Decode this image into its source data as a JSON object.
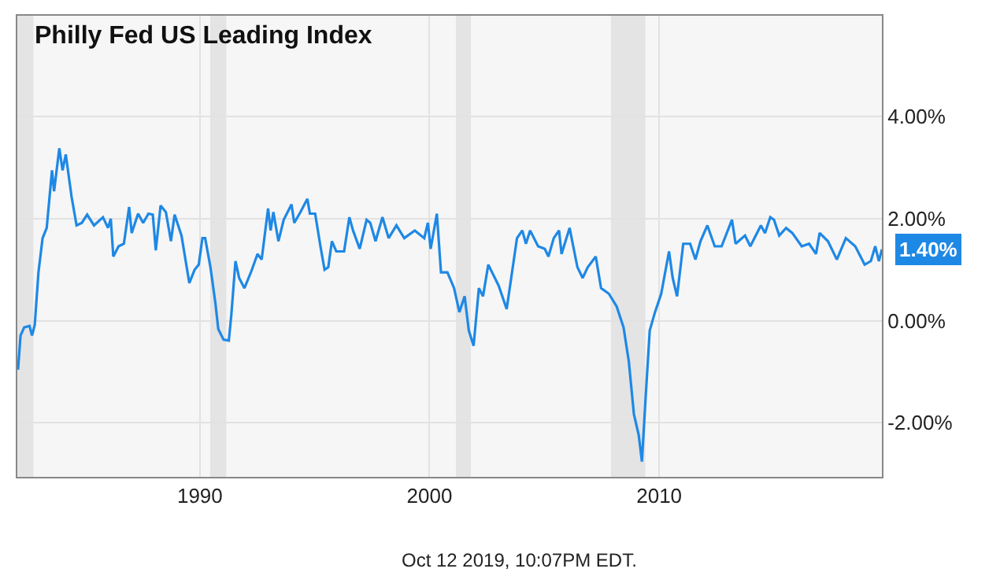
{
  "chart_data": {
    "type": "line",
    "title": "Philly Fed US Leading Index",
    "x": [
      1982.08,
      1982.19,
      1982.35,
      1982.58,
      1982.69,
      1982.81,
      1982.97,
      1983.15,
      1983.33,
      1983.56,
      1983.65,
      1983.88,
      1984.02,
      1984.16,
      1984.41,
      1984.63,
      1984.86,
      1985.09,
      1985.39,
      1985.78,
      1986.0,
      1986.12,
      1986.23,
      1986.46,
      1986.69,
      1986.92,
      1987.03,
      1987.31,
      1987.53,
      1987.76,
      1987.95,
      1988.08,
      1988.29,
      1988.52,
      1988.74,
      1988.9,
      1989.2,
      1989.54,
      1989.77,
      1989.95,
      1990.11,
      1990.23,
      1990.46,
      1990.68,
      1990.8,
      1991.03,
      1991.26,
      1991.37,
      1991.55,
      1991.71,
      1991.94,
      1992.24,
      1992.51,
      1992.69,
      1992.97,
      1993.08,
      1993.2,
      1993.42,
      1993.65,
      1993.99,
      1994.11,
      1994.38,
      1994.68,
      1994.79,
      1995.02,
      1995.25,
      1995.43,
      1995.59,
      1995.75,
      1995.94,
      1996.28,
      1996.51,
      1996.67,
      1996.96,
      1997.26,
      1997.42,
      1997.65,
      1997.95,
      1998.22,
      1998.56,
      1998.9,
      1999.36,
      1999.77,
      1999.93,
      2000.05,
      2000.32,
      2000.5,
      2000.78,
      2001.07,
      2001.3,
      2001.53,
      2001.71,
      2001.92,
      2002.15,
      2002.33,
      2002.56,
      2003.01,
      2003.36,
      2003.81,
      2004.04,
      2004.2,
      2004.38,
      2004.73,
      2005.02,
      2005.18,
      2005.41,
      2005.64,
      2005.75,
      2006.1,
      2006.44,
      2006.67,
      2006.89,
      2007.24,
      2007.47,
      2007.81,
      2008.15,
      2008.45,
      2008.68,
      2008.9,
      2009.11,
      2009.25,
      2009.41,
      2009.59,
      2009.82,
      2010.09,
      2010.43,
      2010.59,
      2010.78,
      2011.05,
      2011.35,
      2011.58,
      2011.8,
      2012.1,
      2012.42,
      2012.72,
      2013.17,
      2013.33,
      2013.74,
      2013.97,
      2014.43,
      2014.61,
      2014.84,
      2015.0,
      2015.23,
      2015.53,
      2015.8,
      2016.21,
      2016.53,
      2016.83,
      2016.99,
      2017.35,
      2017.74,
      2018.13,
      2018.54,
      2018.95,
      2019.22,
      2019.41,
      2019.57,
      2019.7
    ],
    "series": [
      {
        "color": "#1e88e5",
        "values": [
          -0.96,
          -0.29,
          -0.13,
          -0.1,
          -0.29,
          -0.08,
          0.95,
          1.62,
          1.82,
          2.95,
          2.54,
          3.38,
          2.95,
          3.26,
          2.44,
          1.87,
          1.92,
          2.08,
          1.87,
          2.03,
          1.82,
          2.0,
          1.26,
          1.46,
          1.51,
          2.23,
          1.72,
          2.1,
          1.92,
          2.1,
          2.08,
          1.38,
          2.26,
          2.13,
          1.56,
          2.08,
          1.67,
          0.74,
          1.0,
          1.1,
          1.62,
          1.62,
          1.05,
          0.33,
          -0.16,
          -0.37,
          -0.39,
          0.12,
          1.17,
          0.84,
          0.64,
          0.97,
          1.31,
          1.2,
          2.2,
          1.77,
          2.13,
          1.56,
          1.98,
          2.28,
          1.92,
          2.13,
          2.39,
          2.1,
          2.1,
          1.46,
          1.0,
          1.05,
          1.56,
          1.36,
          1.36,
          2.03,
          1.77,
          1.41,
          1.98,
          1.92,
          1.56,
          2.03,
          1.62,
          1.87,
          1.62,
          1.77,
          1.62,
          1.92,
          1.41,
          2.1,
          0.95,
          0.95,
          0.64,
          0.17,
          0.48,
          -0.19,
          -0.49,
          0.64,
          0.48,
          1.1,
          0.69,
          0.23,
          1.62,
          1.77,
          1.51,
          1.77,
          1.46,
          1.41,
          1.26,
          1.62,
          1.77,
          1.31,
          1.82,
          1.05,
          0.84,
          1.05,
          1.26,
          0.64,
          0.53,
          0.28,
          -0.13,
          -0.8,
          -1.83,
          -2.24,
          -2.76,
          -1.52,
          -0.19,
          0.17,
          0.53,
          1.36,
          0.84,
          0.48,
          1.51,
          1.51,
          1.2,
          1.56,
          1.87,
          1.46,
          1.46,
          1.98,
          1.51,
          1.67,
          1.46,
          1.87,
          1.72,
          2.03,
          1.98,
          1.67,
          1.82,
          1.72,
          1.46,
          1.51,
          1.31,
          1.72,
          1.56,
          1.2,
          1.62,
          1.46,
          1.1,
          1.17,
          1.46,
          1.17,
          1.4
        ]
      }
    ],
    "xlim": [
      1982.05,
      2019.7
    ],
    "xticks": [
      1990,
      2000,
      2010
    ],
    "ylim": [
      -3.06,
      5.98
    ],
    "yticks": [
      {
        "value": -2,
        "label": "-2.00%"
      },
      {
        "value": 0,
        "label": "0.00%"
      },
      {
        "value": 2,
        "label": "2.00%"
      },
      {
        "value": 4,
        "label": "4.00%"
      }
    ],
    "grid": true,
    "marker": "none",
    "line_style": "solid",
    "bands": [
      {
        "axis": "x",
        "from": 1982.05,
        "to": 1982.75,
        "color": "#e4e4e4"
      },
      {
        "axis": "x",
        "from": 1990.45,
        "to": 1991.15,
        "color": "#e4e4e4"
      },
      {
        "axis": "x",
        "from": 2001.15,
        "to": 2001.8,
        "color": "#e4e4e4"
      },
      {
        "axis": "x",
        "from": 2007.9,
        "to": 2009.4,
        "color": "#e4e4e4"
      }
    ],
    "annotations": [
      {
        "text": "1.40%",
        "x": 2019.7,
        "y": 1.4
      },
      "Oct 12 2019, 10:07PM EDT."
    ]
  }
}
